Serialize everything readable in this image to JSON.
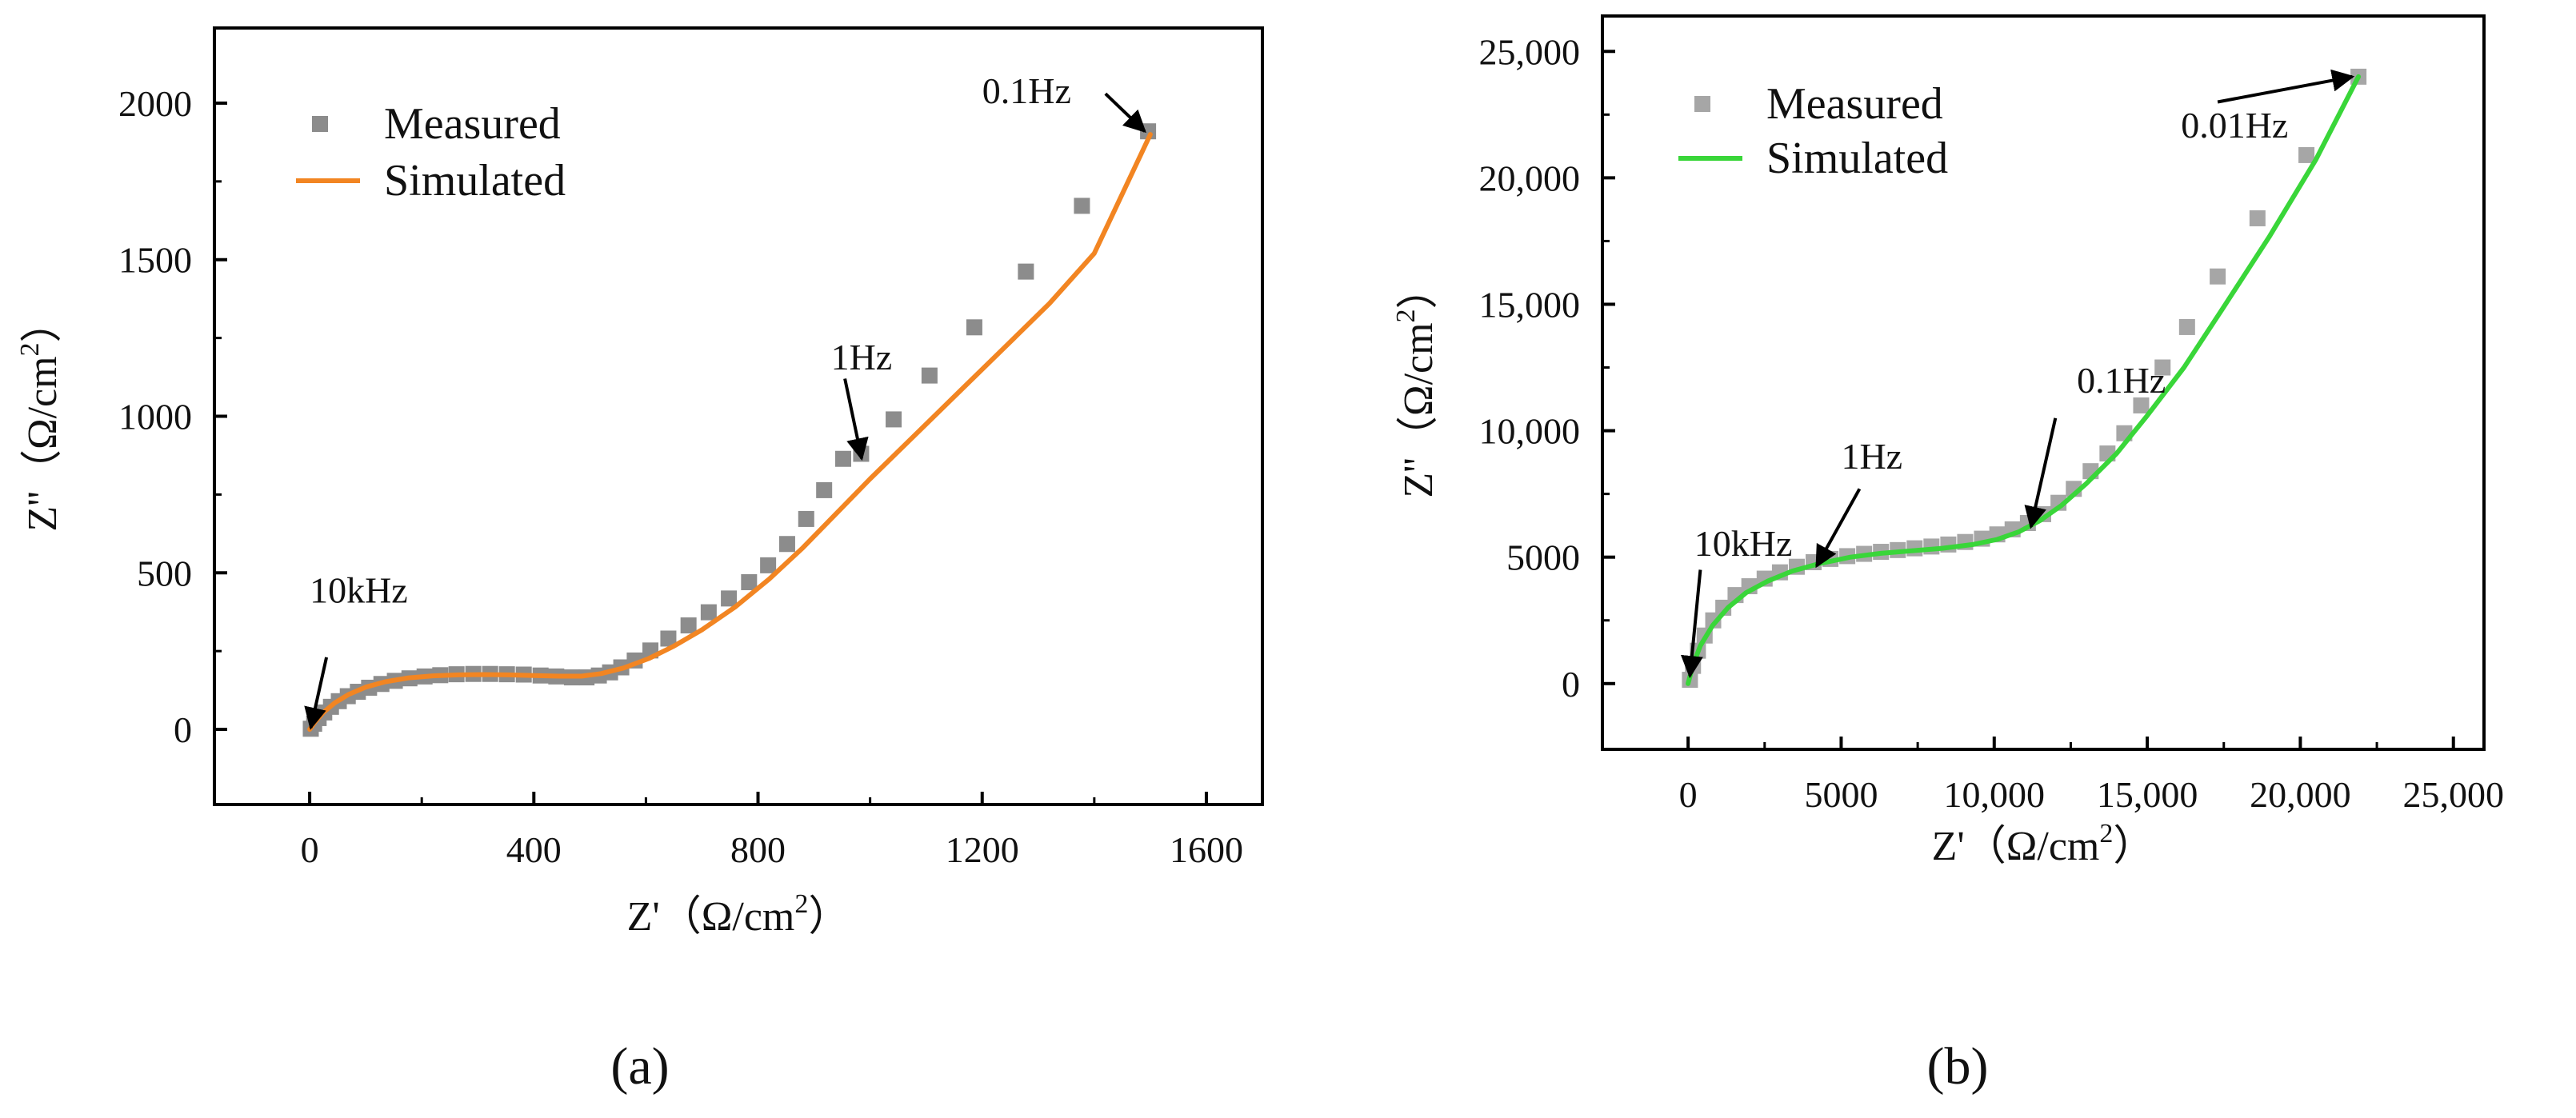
{
  "chart_data": [
    {
      "type": "scatter",
      "panel_label": "(a)",
      "xlabel": "Z'（Ω/cm",
      "ylabel": "Z''（Ω/cm",
      "unit_exponent": "2",
      "unit_close": "）",
      "xlim": [
        -170,
        1700
      ],
      "ylim": [
        -240,
        2240
      ],
      "xticks": [
        0,
        400,
        800,
        1200,
        1600
      ],
      "xtick_labels": [
        "0",
        "400",
        "800",
        "1200",
        "1600"
      ],
      "yticks": [
        0,
        500,
        1000,
        1500,
        2000
      ],
      "ytick_labels": [
        "0",
        "500",
        "1000",
        "1500",
        "2000"
      ],
      "legend_position": "top-left",
      "line_color": "#f28522",
      "marker_color": "#8c8c8c",
      "series": [
        {
          "name": "Measured",
          "kind": "markers",
          "x": [
            2,
            8,
            16,
            26,
            38,
            52,
            68,
            86,
            106,
            128,
            152,
            178,
            205,
            233,
            262,
            292,
            322,
            352,
            382,
            412,
            440,
            468,
            494,
            516,
            536,
            556,
            580,
            608,
            640,
            676,
            712,
            748,
            784,
            818,
            852,
            886,
            918,
            952,
            984,
            1042,
            1106,
            1186,
            1278,
            1378,
            1496
          ],
          "y": [
            2,
            18,
            36,
            54,
            72,
            90,
            106,
            120,
            133,
            145,
            155,
            163,
            169,
            173,
            176,
            177,
            177,
            176,
            175,
            172,
            169,
            166,
            166,
            172,
            182,
            198,
            220,
            252,
            290,
            332,
            374,
            418,
            470,
            524,
            592,
            672,
            764,
            864,
            880,
            990,
            1130,
            1284,
            1462,
            1672,
            1910
          ]
        },
        {
          "name": "Simulated",
          "kind": "line",
          "x": [
            0,
            10,
            25,
            45,
            70,
            100,
            135,
            175,
            220,
            265,
            310,
            355,
            400,
            445,
            485,
            520,
            560,
            605,
            650,
            700,
            760,
            820,
            880,
            940,
            1000,
            1080,
            1160,
            1240,
            1320,
            1400,
            1500
          ],
          "y": [
            0,
            25,
            55,
            85,
            112,
            135,
            152,
            164,
            171,
            174,
            175,
            174,
            172,
            170,
            170,
            178,
            196,
            226,
            266,
            318,
            392,
            480,
            580,
            690,
            800,
            940,
            1080,
            1220,
            1360,
            1520,
            1900
          ]
        }
      ],
      "annotations": [
        {
          "text": "10kHz",
          "text_x": 0,
          "text_y": 405,
          "arrow_from": [
            30,
            230
          ],
          "arrow_to": [
            2,
            5
          ]
        },
        {
          "text": "1Hz",
          "text_x": 930,
          "text_y": 1150,
          "arrow_from": [
            955,
            1120
          ],
          "arrow_to": [
            985,
            865
          ]
        },
        {
          "text": "0.1Hz",
          "text_x": 1200,
          "text_y": 2000,
          "arrow_from": [
            1420,
            2030
          ],
          "arrow_to": [
            1490,
            1910
          ]
        }
      ]
    },
    {
      "type": "scatter",
      "panel_label": "(b)",
      "xlabel": "Z'（Ω/cm",
      "ylabel": "Z''（Ω/cm",
      "unit_exponent": "2",
      "unit_close": "）",
      "xlim": [
        -2800,
        26000
      ],
      "ylim": [
        -2600,
        26400
      ],
      "xticks": [
        0,
        5000,
        10000,
        15000,
        20000,
        25000
      ],
      "xtick_labels": [
        "0",
        "5000",
        "10,000",
        "15,000",
        "20,000",
        "25,000"
      ],
      "yticks": [
        0,
        5000,
        10000,
        15000,
        20000,
        25000
      ],
      "ytick_labels": [
        "0",
        "5000",
        "10,000",
        "15,000",
        "20,000",
        "25,000"
      ],
      "legend_position": "top-left",
      "line_color": "#39d639",
      "marker_color": "#a6a6a6",
      "series": [
        {
          "name": "Measured",
          "kind": "markers",
          "x": [
            60,
            160,
            320,
            540,
            820,
            1150,
            1550,
            2000,
            2500,
            3000,
            3550,
            4100,
            4650,
            5200,
            5750,
            6300,
            6850,
            7400,
            7950,
            8500,
            9050,
            9600,
            10100,
            10600,
            11100,
            11600,
            12100,
            12600,
            13150,
            13700,
            14250,
            14800,
            15500,
            16300,
            17300,
            18600,
            20200,
            21900
          ],
          "y": [
            150,
            700,
            1300,
            1900,
            2500,
            3000,
            3500,
            3850,
            4150,
            4400,
            4620,
            4800,
            4930,
            5040,
            5130,
            5210,
            5280,
            5350,
            5420,
            5500,
            5600,
            5730,
            5900,
            6100,
            6350,
            6700,
            7150,
            7700,
            8400,
            9100,
            9900,
            11000,
            12500,
            14100,
            16100,
            18400,
            20900,
            24000
          ]
        },
        {
          "name": "Simulated",
          "kind": "line",
          "x": [
            0,
            150,
            400,
            800,
            1300,
            1900,
            2600,
            3400,
            4300,
            5300,
            6300,
            7300,
            8300,
            9300,
            10100,
            10800,
            11500,
            12200,
            13000,
            14000,
            15000,
            16200,
            17500,
            19000,
            20500,
            21900
          ],
          "y": [
            0,
            700,
            1500,
            2300,
            3000,
            3600,
            4050,
            4450,
            4750,
            5000,
            5150,
            5250,
            5350,
            5500,
            5700,
            6000,
            6450,
            7050,
            7900,
            9100,
            10600,
            12500,
            14900,
            17700,
            20700,
            24000
          ]
        }
      ],
      "annotations": [
        {
          "text": "10kHz",
          "text_x": 200,
          "text_y": 5050,
          "arrow_from": [
            400,
            4500
          ],
          "arrow_to": [
            60,
            300
          ]
        },
        {
          "text": "1Hz",
          "text_x": 5000,
          "text_y": 8500,
          "arrow_from": [
            5600,
            7700
          ],
          "arrow_to": [
            4200,
            4650
          ]
        },
        {
          "text": "0.1Hz",
          "text_x": 12700,
          "text_y": 11500,
          "arrow_from": [
            12000,
            10500
          ],
          "arrow_to": [
            11200,
            6200
          ]
        },
        {
          "text": "0.01Hz",
          "text_x": 16100,
          "text_y": 21600,
          "arrow_from": [
            17300,
            23000
          ],
          "arrow_to": [
            21700,
            24000
          ]
        }
      ]
    }
  ]
}
